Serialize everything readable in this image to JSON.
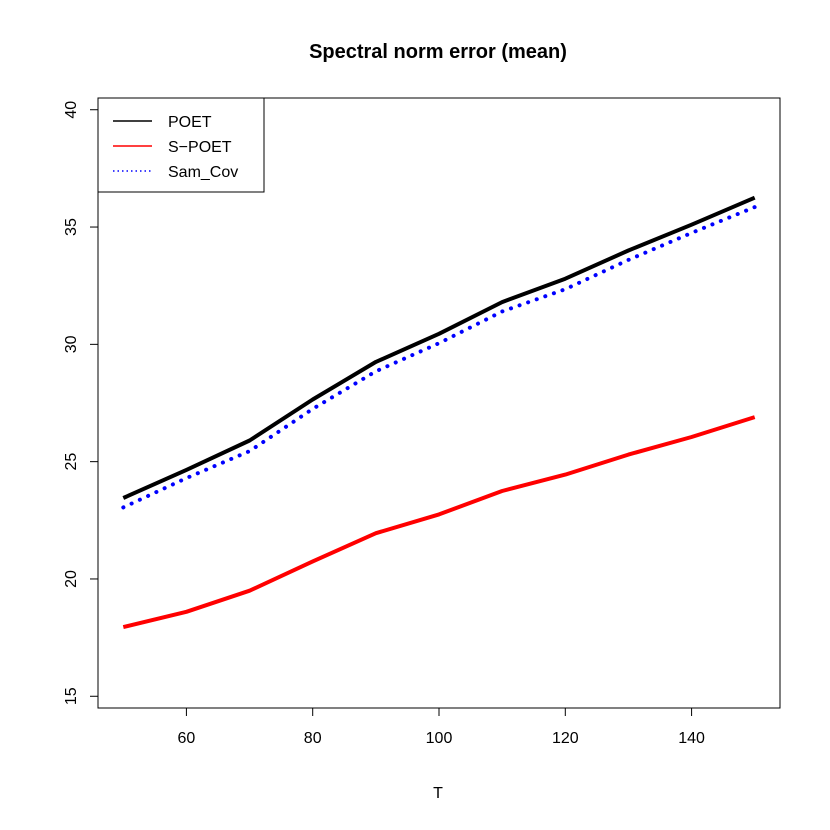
{
  "chart_data": {
    "type": "line",
    "title": "Spectral norm error (mean)",
    "xlabel": "T",
    "ylabel": "",
    "xlim": [
      46,
      154
    ],
    "ylim": [
      14.5,
      40.5
    ],
    "xticks": [
      60,
      80,
      100,
      120,
      140
    ],
    "yticks": [
      15,
      20,
      25,
      30,
      35,
      40
    ],
    "legend_position": "top-left",
    "grid": false,
    "x": [
      50,
      60,
      70,
      80,
      90,
      100,
      110,
      120,
      130,
      140,
      150
    ],
    "series": [
      {
        "name": "POET",
        "color": "#000000",
        "style": "solid",
        "values": [
          23.45,
          24.65,
          25.9,
          27.65,
          29.25,
          30.45,
          31.8,
          32.8,
          34.0,
          35.1,
          36.25
        ]
      },
      {
        "name": "S−POET",
        "color": "#ff0000",
        "style": "solid",
        "values": [
          17.95,
          18.6,
          19.5,
          20.75,
          21.95,
          22.75,
          23.75,
          24.45,
          25.3,
          26.05,
          26.9
        ]
      },
      {
        "name": "Sam_Cov",
        "color": "#0000ff",
        "style": "dotted",
        "values": [
          23.05,
          24.3,
          25.45,
          27.25,
          28.85,
          30.05,
          31.4,
          32.35,
          33.6,
          34.75,
          35.85
        ]
      }
    ]
  }
}
